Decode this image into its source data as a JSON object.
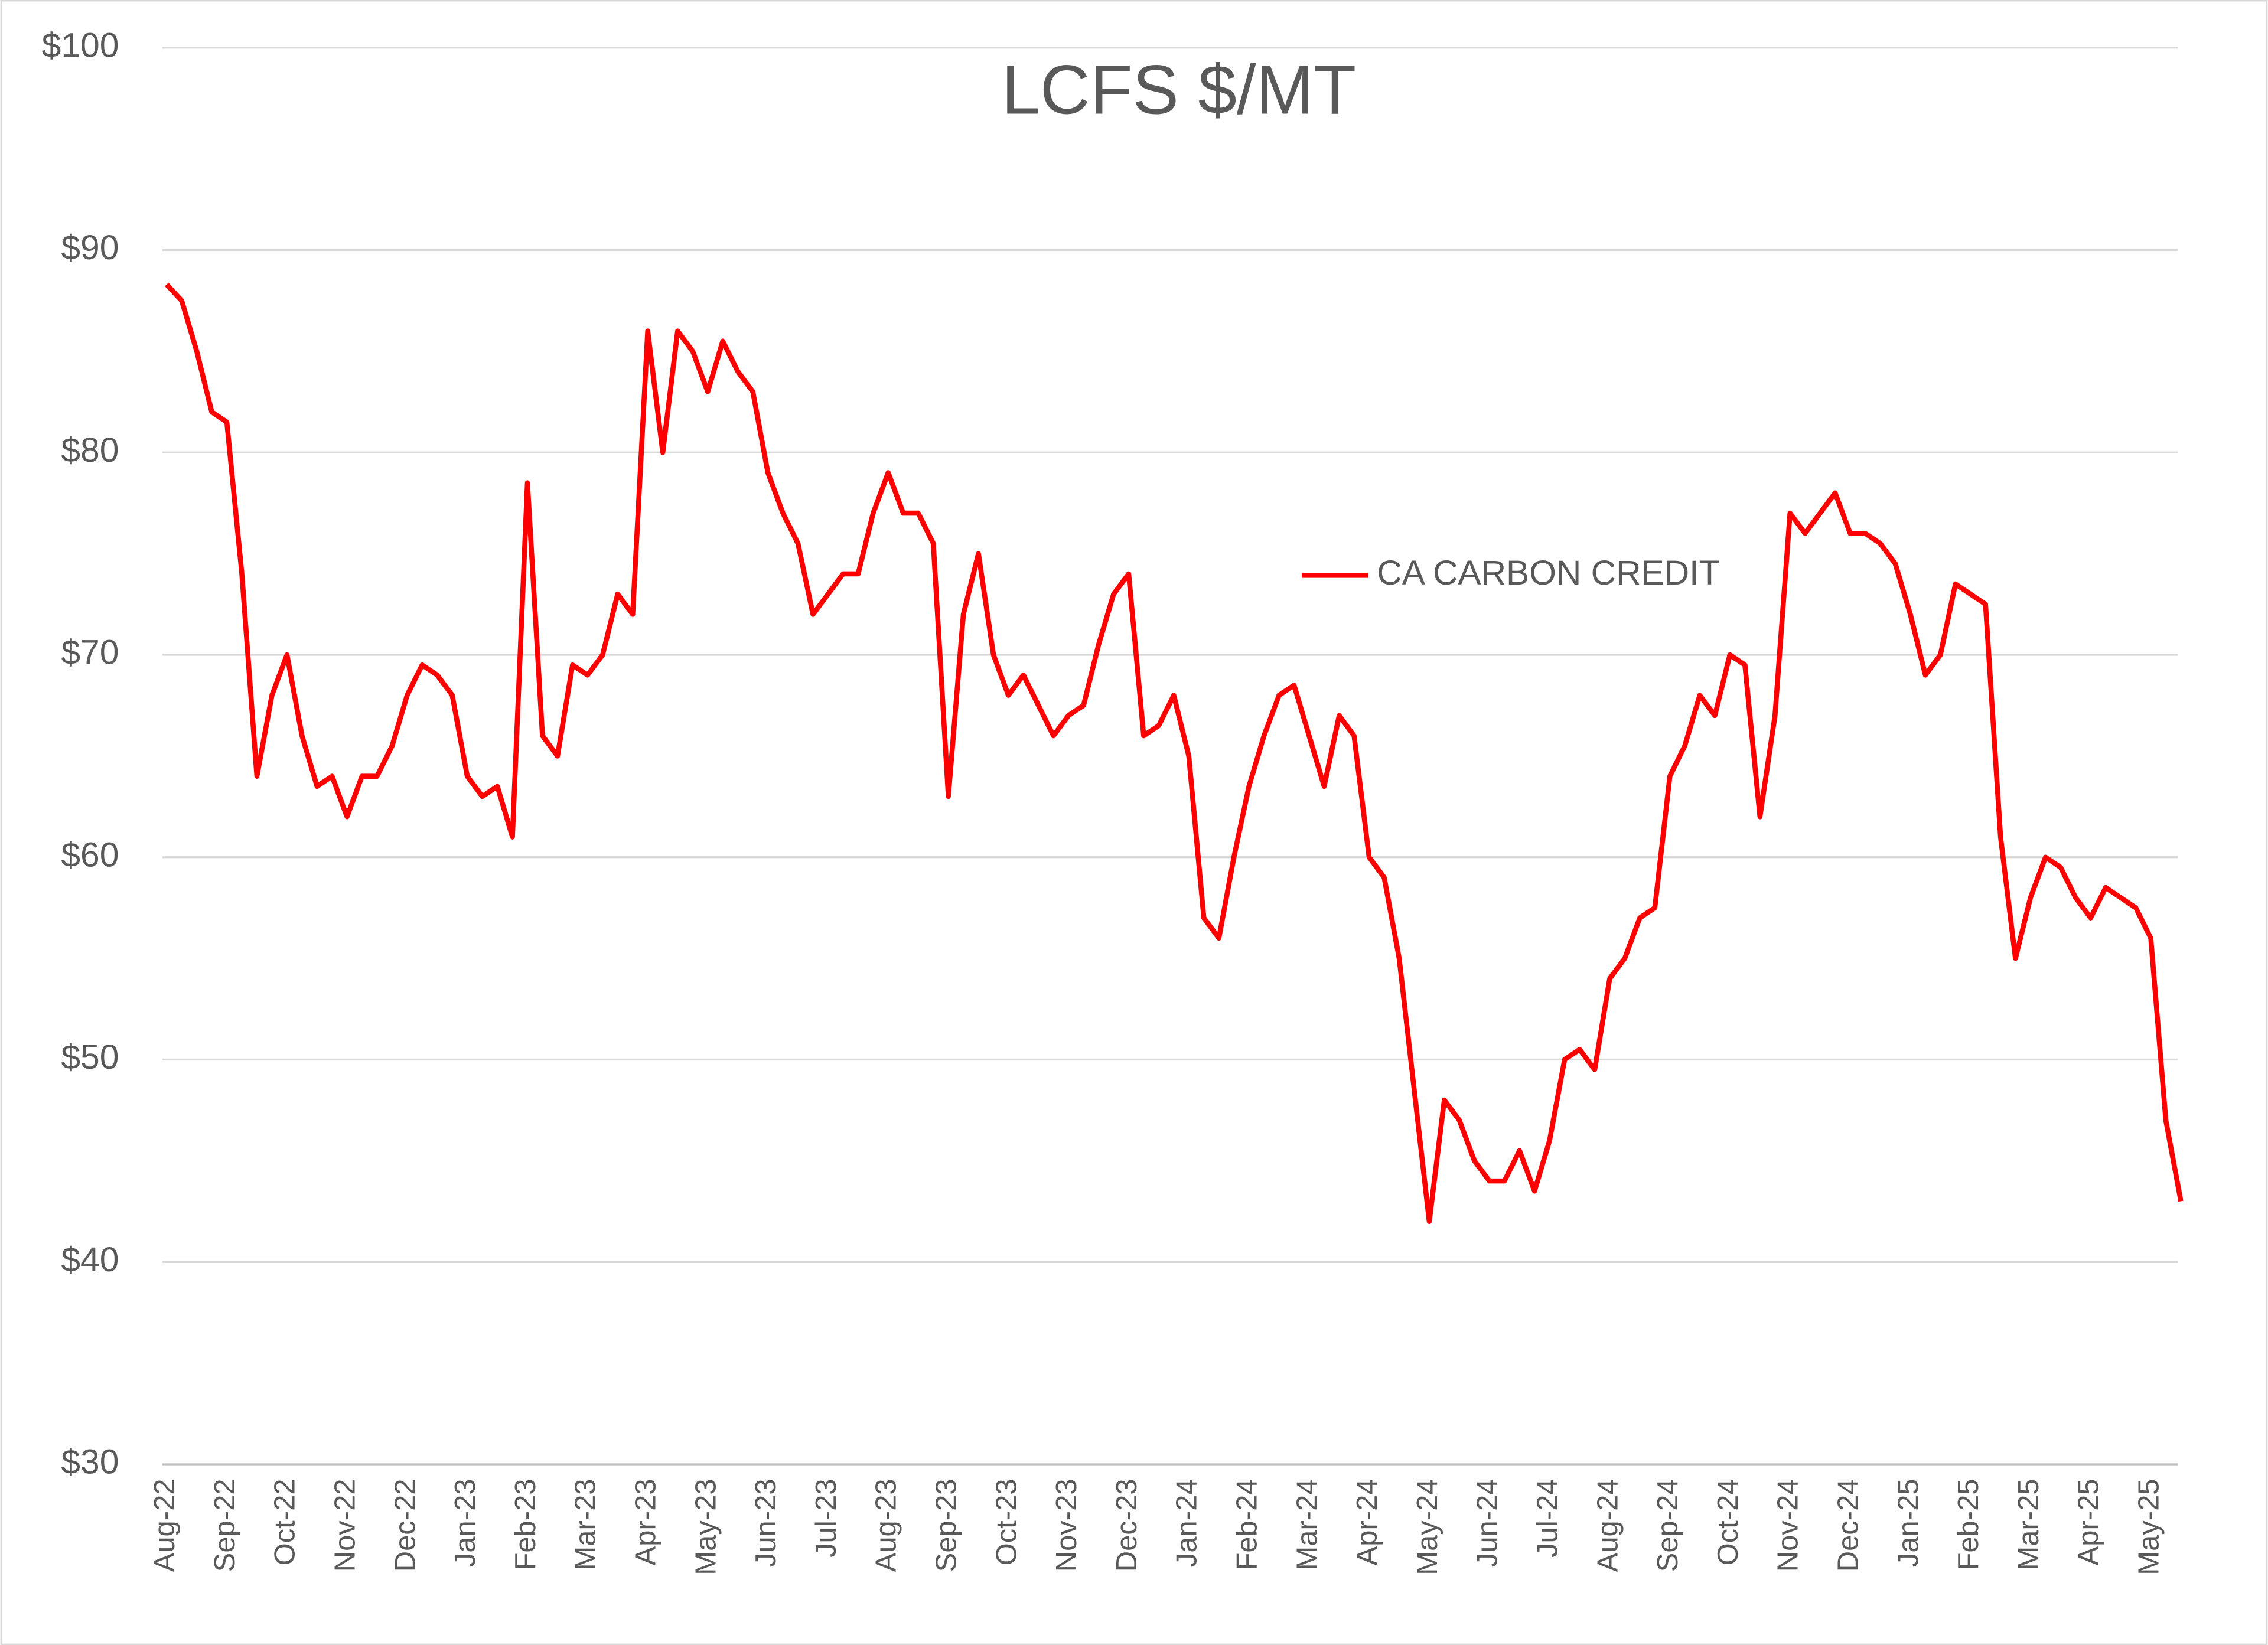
{
  "chart_data": {
    "type": "line",
    "title": "LCFS $/MT",
    "categories": [
      "Aug-22",
      null,
      null,
      null,
      "Sep-22",
      null,
      null,
      null,
      "Oct-22",
      null,
      null,
      null,
      "Nov-22",
      null,
      null,
      null,
      "Dec-22",
      null,
      null,
      null,
      "Jan-23",
      null,
      null,
      null,
      "Feb-23",
      null,
      null,
      null,
      "Mar-23",
      null,
      null,
      null,
      "Apr-23",
      null,
      null,
      null,
      "May-23",
      null,
      null,
      null,
      "Jun-23",
      null,
      null,
      null,
      "Jul-23",
      null,
      null,
      null,
      "Aug-23",
      null,
      null,
      null,
      "Sep-23",
      null,
      null,
      null,
      "Oct-23",
      null,
      null,
      null,
      "Nov-23",
      null,
      null,
      null,
      "Dec-23",
      null,
      null,
      null,
      "Jan-24",
      null,
      null,
      null,
      "Feb-24",
      null,
      null,
      null,
      "Mar-24",
      null,
      null,
      null,
      "Apr-24",
      null,
      null,
      null,
      "May-24",
      null,
      null,
      null,
      "Jun-24",
      null,
      null,
      null,
      "Jul-24",
      null,
      null,
      null,
      "Aug-24",
      null,
      null,
      null,
      "Sep-24",
      null,
      null,
      null,
      "Oct-24",
      null,
      null,
      null,
      "Nov-24",
      null,
      null,
      null,
      "Dec-24",
      null,
      null,
      null,
      "Jan-25",
      null,
      null,
      null,
      "Feb-25",
      null,
      null,
      null,
      "Mar-25",
      null,
      null,
      null,
      "Apr-25",
      null,
      null,
      null,
      "May-25",
      null,
      null
    ],
    "series": [
      {
        "name": "CA CARBON CREDIT",
        "color": "#ff0000",
        "values": [
          88.3,
          87.5,
          85,
          82,
          81.5,
          74,
          64,
          68,
          70,
          66,
          63.5,
          64,
          62,
          64,
          64,
          65.5,
          68,
          69.5,
          69,
          68,
          64,
          63,
          63.5,
          61,
          78.5,
          66,
          65,
          69.5,
          69,
          70,
          73,
          72,
          86,
          80,
          86,
          85,
          83,
          85.5,
          84,
          83,
          79,
          77,
          75.5,
          72,
          73,
          74,
          74,
          77,
          79,
          77,
          77,
          75.5,
          63,
          72,
          75,
          70,
          68,
          69,
          67.5,
          66,
          67,
          67.5,
          70.5,
          73,
          74,
          66,
          66.5,
          68,
          65,
          57,
          56,
          60,
          63.5,
          66,
          68,
          68.5,
          66,
          63.5,
          67,
          66,
          60,
          59,
          55,
          48.5,
          42,
          48,
          47,
          45,
          44,
          44,
          45.5,
          43.5,
          46,
          50,
          50.5,
          49.5,
          54,
          55,
          57,
          57.5,
          64,
          65.5,
          68,
          67,
          70,
          69.5,
          62,
          67,
          77,
          76,
          77,
          78,
          76,
          76,
          75.5,
          74.5,
          72,
          69,
          70,
          73.5,
          73,
          72.5,
          61,
          55,
          58,
          60,
          59.5,
          58,
          57,
          58.5,
          58,
          57.5,
          56,
          47,
          43
        ]
      }
    ],
    "ylim": [
      30,
      100
    ],
    "yticks": [
      {
        "value": 30,
        "label": "$30"
      },
      {
        "value": 40,
        "label": "$40"
      },
      {
        "value": 50,
        "label": "$50"
      },
      {
        "value": 60,
        "label": "$60"
      },
      {
        "value": 70,
        "label": "$70"
      },
      {
        "value": 80,
        "label": "$80"
      },
      {
        "value": 90,
        "label": "$90"
      },
      {
        "value": 100,
        "label": "$100"
      }
    ],
    "grid": true,
    "legend": "center-right"
  }
}
